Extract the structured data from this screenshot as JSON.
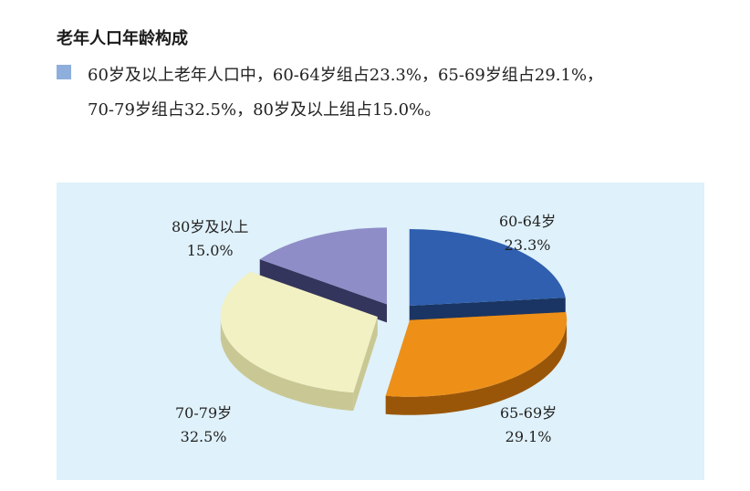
{
  "heading": "老年人口年龄构成",
  "description": {
    "line1": "60岁及以上老年人口中，60-64岁组占23.3%，65-69岁组占29.1%，",
    "line2": "70-79岁组占32.5%，80岁及以上组占15.0%。"
  },
  "colors": {
    "swatch": "#8eaedc",
    "panel": "#dff1fa"
  },
  "chart_data": {
    "type": "pie",
    "style": "3d-exploded",
    "unit": "%",
    "slices": [
      {
        "label": "60-64岁",
        "value": 23.3,
        "value_label": "23.3%",
        "color": "#2f5fae",
        "side": "#1a3563"
      },
      {
        "label": "65-69岁",
        "value": 29.1,
        "value_label": "29.1%",
        "color": "#ee9018",
        "side": "#9a5608"
      },
      {
        "label": "70-79岁",
        "value": 32.5,
        "value_label": "32.5%",
        "color": "#f2f1c4",
        "side": "#c9c894"
      },
      {
        "label": "80岁及以上",
        "value": 15.0,
        "value_label": "15.0%",
        "color": "#8f8dc8",
        "side": "#34355c"
      }
    ]
  }
}
